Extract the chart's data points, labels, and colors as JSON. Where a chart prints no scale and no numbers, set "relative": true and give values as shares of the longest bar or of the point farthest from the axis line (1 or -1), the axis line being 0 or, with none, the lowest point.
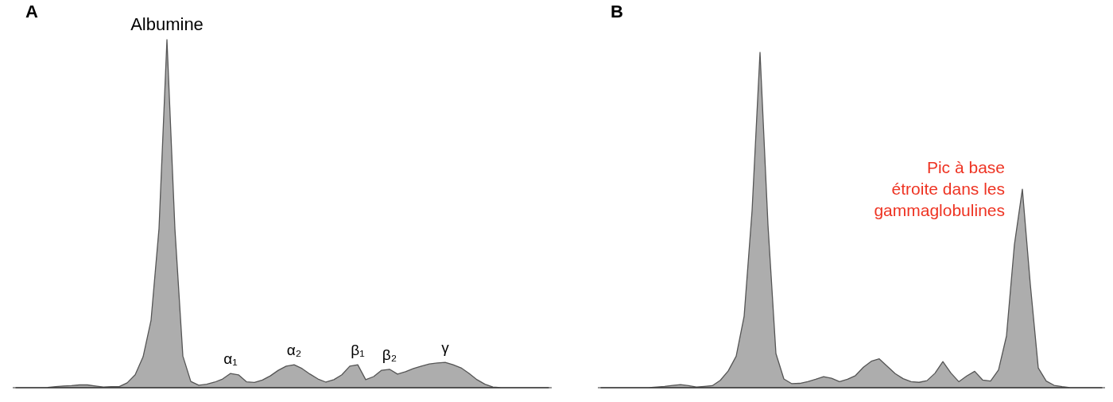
{
  "chart_data": [
    {
      "type": "area",
      "title": "A",
      "relative": true,
      "categories": [
        null,
        null,
        null,
        null,
        null,
        null,
        null,
        null,
        null,
        null,
        null,
        null,
        null,
        null,
        null,
        null,
        null,
        null,
        null,
        null,
        null,
        null,
        null,
        null,
        null,
        null,
        null,
        null,
        null,
        null,
        null,
        null,
        null,
        null,
        null,
        null,
        null,
        null,
        null,
        null,
        null,
        null,
        null,
        null,
        null,
        null,
        null,
        null,
        null,
        null,
        null,
        null,
        null,
        null,
        null,
        null,
        null,
        null,
        null,
        null,
        null,
        null,
        null,
        null,
        null,
        null,
        null,
        null
      ],
      "series": [
        {
          "color": "#adadad",
          "values": [
            0,
            0,
            0,
            0,
            0.001,
            0.003,
            0.005,
            0.006,
            0.008,
            0.008,
            0.005,
            0.002,
            0.003,
            0.003,
            0.014,
            0.037,
            0.089,
            0.194,
            0.457,
            1,
            0.457,
            0.091,
            0.018,
            0.007,
            0.01,
            0.016,
            0.025,
            0.041,
            0.037,
            0.017,
            0.015,
            0.022,
            0.034,
            0.05,
            0.062,
            0.066,
            0.055,
            0.039,
            0.025,
            0.016,
            0.023,
            0.037,
            0.062,
            0.066,
            0.023,
            0.032,
            0.05,
            0.053,
            0.039,
            0.046,
            0.055,
            0.062,
            0.068,
            0.071,
            0.073,
            0.066,
            0.057,
            0.041,
            0.023,
            0.01,
            0.002,
            0,
            0,
            0,
            0,
            0,
            0,
            0
          ]
        }
      ],
      "annotations": [
        "Albumine",
        "α₁",
        "α₂",
        "β₁",
        "β₂",
        "γ"
      ]
    },
    {
      "type": "area",
      "title": "B",
      "relative": true,
      "categories": [
        null,
        null,
        null,
        null,
        null,
        null,
        null,
        null,
        null,
        null,
        null,
        null,
        null,
        null,
        null,
        null,
        null,
        null,
        null,
        null,
        null,
        null,
        null,
        null,
        null,
        null,
        null,
        null,
        null,
        null,
        null,
        null,
        null,
        null,
        null,
        null,
        null,
        null,
        null,
        null,
        null,
        null,
        null,
        null,
        null,
        null,
        null,
        null,
        null,
        null,
        null,
        null,
        null,
        null,
        null,
        null,
        null,
        null,
        null,
        null,
        null,
        null,
        null,
        null
      ],
      "series": [
        {
          "color": "#adadad",
          "values": [
            0,
            0,
            0,
            0,
            0,
            0,
            0,
            0.002,
            0.004,
            0.007,
            0.009,
            0.006,
            0.002,
            0.004,
            0.006,
            0.022,
            0.05,
            0.094,
            0.213,
            0.528,
            1,
            0.486,
            0.102,
            0.026,
            0.012,
            0.013,
            0.018,
            0.025,
            0.033,
            0.028,
            0.018,
            0.025,
            0.036,
            0.061,
            0.079,
            0.086,
            0.064,
            0.042,
            0.027,
            0.018,
            0.016,
            0.021,
            0.043,
            0.078,
            0.044,
            0.018,
            0.035,
            0.049,
            0.023,
            0.02,
            0.053,
            0.154,
            0.427,
            0.592,
            0.308,
            0.059,
            0.02,
            0.007,
            0.003,
            0,
            0,
            0,
            0,
            0
          ]
        }
      ],
      "annotations": [
        "Pic à base\nétroite dans les\ngammaglobulines"
      ]
    }
  ]
}
